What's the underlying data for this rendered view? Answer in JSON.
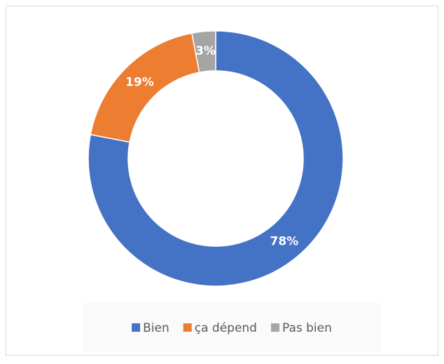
{
  "chart_data": {
    "type": "donut",
    "categories": [
      "Bien",
      "ça dépend",
      "Pas bien"
    ],
    "values": [
      78,
      19,
      3
    ],
    "value_labels": [
      "78%",
      "19%",
      "3%"
    ],
    "colors": [
      "#4472c4",
      "#ed7d31",
      "#a5a5a5"
    ],
    "legend": "bottom"
  }
}
